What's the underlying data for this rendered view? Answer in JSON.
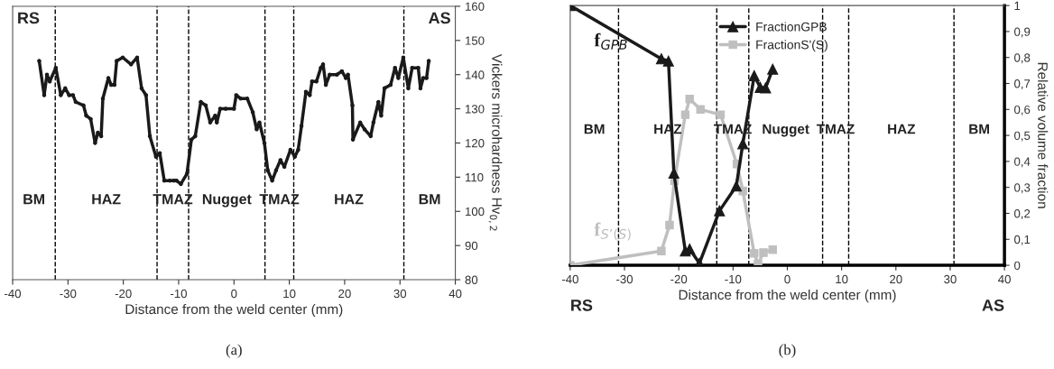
{
  "chart_data": [
    {
      "type": "line",
      "xlabel": "Distance from the weld center (mm)",
      "ylabel": "Vickers microhardness Hv$_{0,2}$",
      "x": [
        -35.2,
        -34.3,
        -33.8,
        -33.3,
        -32.2,
        -31.3,
        -30.5,
        -29.8,
        -29.1,
        -28.6,
        -27.2,
        -26.7,
        -25.9,
        -25.1,
        -24.6,
        -24.0,
        -23.7,
        -22.7,
        -22.2,
        -21.6,
        -21.2,
        -20.1,
        -18.6,
        -17.5,
        -16.7,
        -15.9,
        -15.2,
        -14.1,
        -13.4,
        -12.6,
        -11.6,
        -10.9,
        -10.4,
        -9.6,
        -8.5,
        -7.7,
        -7.0,
        -6.0,
        -5.1,
        -4.3,
        -3.4,
        -3.1,
        -2.5,
        -1.5,
        0.0,
        0.4,
        1.2,
        2.4,
        3.4,
        4.1,
        4.6,
        5.5,
        6.1,
        6.9,
        7.6,
        8.4,
        9.1,
        10.2,
        11.0,
        11.6,
        12.2,
        13.0,
        13.7,
        14.1,
        14.9,
        15.7,
        16.1,
        16.6,
        17.3,
        18.6,
        19.5,
        20.2,
        20.6,
        21.4,
        21.5,
        22.8,
        23.6,
        24.7,
        25.2,
        26.1,
        26.6,
        27.2,
        28.3,
        29.1,
        29.7,
        30.6,
        31.5,
        32.2,
        33.3,
        33.7,
        34.2,
        34.8,
        35.2
      ],
      "series": [
        {
          "color": "#1a1a1a",
          "marker": "circle",
          "values": [
            144,
            134,
            140,
            138,
            142,
            134,
            136,
            134,
            134,
            132,
            131,
            128,
            127,
            120,
            123,
            122,
            133,
            139,
            137,
            137,
            144,
            145,
            143,
            145,
            136,
            134,
            122,
            116,
            117,
            109,
            109,
            109,
            109,
            108,
            111,
            121,
            122,
            132,
            131,
            126,
            128,
            126,
            130,
            130,
            130,
            134,
            133,
            133,
            129,
            124,
            126,
            120,
            112,
            109,
            112,
            115,
            113,
            118,
            116,
            118,
            125,
            135,
            134,
            138,
            138,
            142,
            143,
            137,
            140,
            140,
            141,
            139,
            140,
            131,
            121,
            126,
            124,
            122,
            126,
            132,
            128,
            136,
            137,
            142,
            139,
            145,
            136,
            142,
            142,
            136,
            139,
            139,
            144
          ]
        }
      ],
      "xlim": [
        -40,
        40
      ],
      "xticks": [
        -40,
        -30,
        -20,
        -10,
        0,
        10,
        20,
        30,
        40
      ],
      "ylim": [
        80,
        160
      ],
      "yticks": [
        80,
        90,
        100,
        110,
        120,
        130,
        140,
        150,
        160
      ],
      "ref_lines": [
        {
          "axis": "x",
          "value": -32.3,
          "line_style": "dashed",
          "color": "#000000"
        },
        {
          "axis": "x",
          "value": -13.9,
          "line_style": "dashed",
          "color": "#000000"
        },
        {
          "axis": "x",
          "value": -8.2,
          "line_style": "dashed",
          "color": "#000000"
        },
        {
          "axis": "x",
          "value": 5.6,
          "line_style": "dashed",
          "color": "#000000"
        },
        {
          "axis": "x",
          "value": 10.8,
          "line_style": "dashed",
          "color": "#000000"
        },
        {
          "axis": "x",
          "value": 30.7,
          "line_style": "dashed",
          "color": "#000000"
        }
      ],
      "annotations": [
        "RS",
        "AS",
        "(a)",
        "BM",
        "HAZ",
        "TMAZ",
        "Nugget",
        "TMAZ",
        "HAZ",
        "BM"
      ],
      "grid": false,
      "legend": false
    },
    {
      "type": "line",
      "xlabel": "Distance from the weld center (mm)",
      "ylabel": "Relative volume fraction",
      "series": [
        {
          "name": "FractionGPB",
          "color": "#1a1a1a",
          "marker": "triangle",
          "x": [
            -40,
            -23.2,
            -21.9,
            -20.9,
            -18.8,
            -18.0,
            -16.2,
            -12.5,
            -9.4,
            -8.2,
            -6.1,
            -5.0,
            -4.0,
            -2.7
          ],
          "values": [
            1.0,
            0.795,
            0.786,
            0.355,
            0.055,
            0.063,
            0.008,
            0.21,
            0.305,
            0.468,
            0.73,
            0.685,
            0.683,
            0.755
          ]
        },
        {
          "name": "FractionS'(S)",
          "color": "#bfbfbf",
          "marker": "square",
          "x": [
            -40,
            -23.2,
            -21.7,
            -20.8,
            -18.8,
            -18.0,
            -16.0,
            -12.3,
            -9.3,
            -8.2,
            -6.1,
            -5.4,
            -4.4,
            -2.7
          ],
          "values": [
            0.0,
            0.055,
            0.155,
            0.326,
            0.58,
            0.64,
            0.6,
            0.58,
            0.39,
            0.286,
            0.046,
            0.005,
            0.049,
            0.06
          ]
        }
      ],
      "xlim": [
        -40,
        40
      ],
      "xticks": [
        -40,
        -30,
        -20,
        -10,
        0,
        10,
        20,
        30,
        40
      ],
      "ylim": [
        0,
        1
      ],
      "yticks": [
        0,
        {
          "value": 0.1,
          "label": "0,1"
        },
        {
          "value": 0.2,
          "label": "0,2"
        },
        {
          "value": 0.3,
          "label": "0,3"
        },
        {
          "value": 0.4,
          "label": "0,4"
        },
        {
          "value": 0.5,
          "label": "0,5"
        },
        {
          "value": 0.6,
          "label": "0,6"
        },
        {
          "value": 0.7,
          "label": "0,7"
        },
        {
          "value": 0.8,
          "label": "0,8"
        },
        {
          "value": 0.9,
          "label": "0,9"
        },
        1
      ],
      "ref_lines": [
        {
          "axis": "x",
          "value": -31.1,
          "line_style": "dashed",
          "color": "#000000"
        },
        {
          "axis": "x",
          "value": -13.0,
          "line_style": "dashed",
          "color": "#000000"
        },
        {
          "axis": "x",
          "value": -7.1,
          "line_style": "dashed",
          "color": "#000000"
        },
        {
          "axis": "x",
          "value": 6.5,
          "line_style": "dashed",
          "color": "#000000"
        },
        {
          "axis": "x",
          "value": 11.3,
          "line_style": "dashed",
          "color": "#000000"
        },
        {
          "axis": "x",
          "value": 30.7,
          "line_style": "dashed",
          "color": "#000000"
        }
      ],
      "annotations": [
        "RS",
        "AS",
        "(b)",
        "BM",
        "HAZ",
        "TMAZ",
        "Nugget",
        "TMAZ",
        "HAZ",
        "BM",
        "f$_{GPB}$",
        "f$_{S’(S)}$"
      ],
      "grid": false,
      "legend": "top right"
    }
  ]
}
